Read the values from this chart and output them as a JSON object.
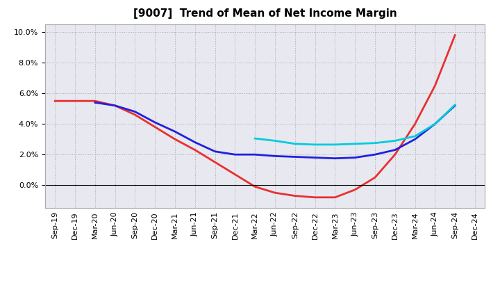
{
  "title": "[9007]  Trend of Mean of Net Income Margin",
  "x_labels": [
    "Sep-19",
    "Dec-19",
    "Mar-20",
    "Jun-20",
    "Sep-20",
    "Dec-20",
    "Mar-21",
    "Jun-21",
    "Sep-21",
    "Dec-21",
    "Mar-22",
    "Jun-22",
    "Sep-22",
    "Dec-22",
    "Mar-23",
    "Jun-23",
    "Sep-23",
    "Dec-23",
    "Mar-24",
    "Jun-24",
    "Sep-24",
    "Dec-24"
  ],
  "y3": [
    5.5,
    5.5,
    5.5,
    5.2,
    4.6,
    3.8,
    3.0,
    2.3,
    1.5,
    0.7,
    -0.1,
    -0.5,
    -0.7,
    -0.8,
    -0.8,
    -0.3,
    0.5,
    2.0,
    4.0,
    6.5,
    9.8,
    null
  ],
  "y5": [
    null,
    null,
    5.4,
    5.2,
    4.8,
    4.1,
    3.5,
    2.8,
    2.2,
    2.0,
    2.0,
    1.9,
    1.85,
    1.8,
    1.75,
    1.8,
    2.0,
    2.3,
    3.0,
    4.0,
    5.2,
    null
  ],
  "y7": [
    null,
    null,
    null,
    null,
    null,
    null,
    null,
    null,
    null,
    null,
    3.05,
    2.9,
    2.7,
    2.65,
    2.65,
    2.7,
    2.75,
    2.9,
    3.2,
    4.0,
    5.25,
    null
  ],
  "y10": [
    null,
    null,
    null,
    null,
    null,
    null,
    null,
    null,
    null,
    null,
    null,
    null,
    null,
    null,
    null,
    null,
    null,
    null,
    null,
    null,
    null,
    null
  ],
  "colors": {
    "3y": "#e83030",
    "5y": "#2020e0",
    "7y": "#00ccdd",
    "10y": "#22aa22"
  },
  "ylim": [
    -1.5,
    10.5
  ],
  "yticks": [
    0.0,
    2.0,
    4.0,
    6.0,
    8.0,
    10.0
  ],
  "background_color": "#e8e8f0",
  "grid_color": "#aaaaaa",
  "title_fontsize": 11,
  "tick_fontsize": 8,
  "legend_fontsize": 9,
  "linewidth": 2.0
}
